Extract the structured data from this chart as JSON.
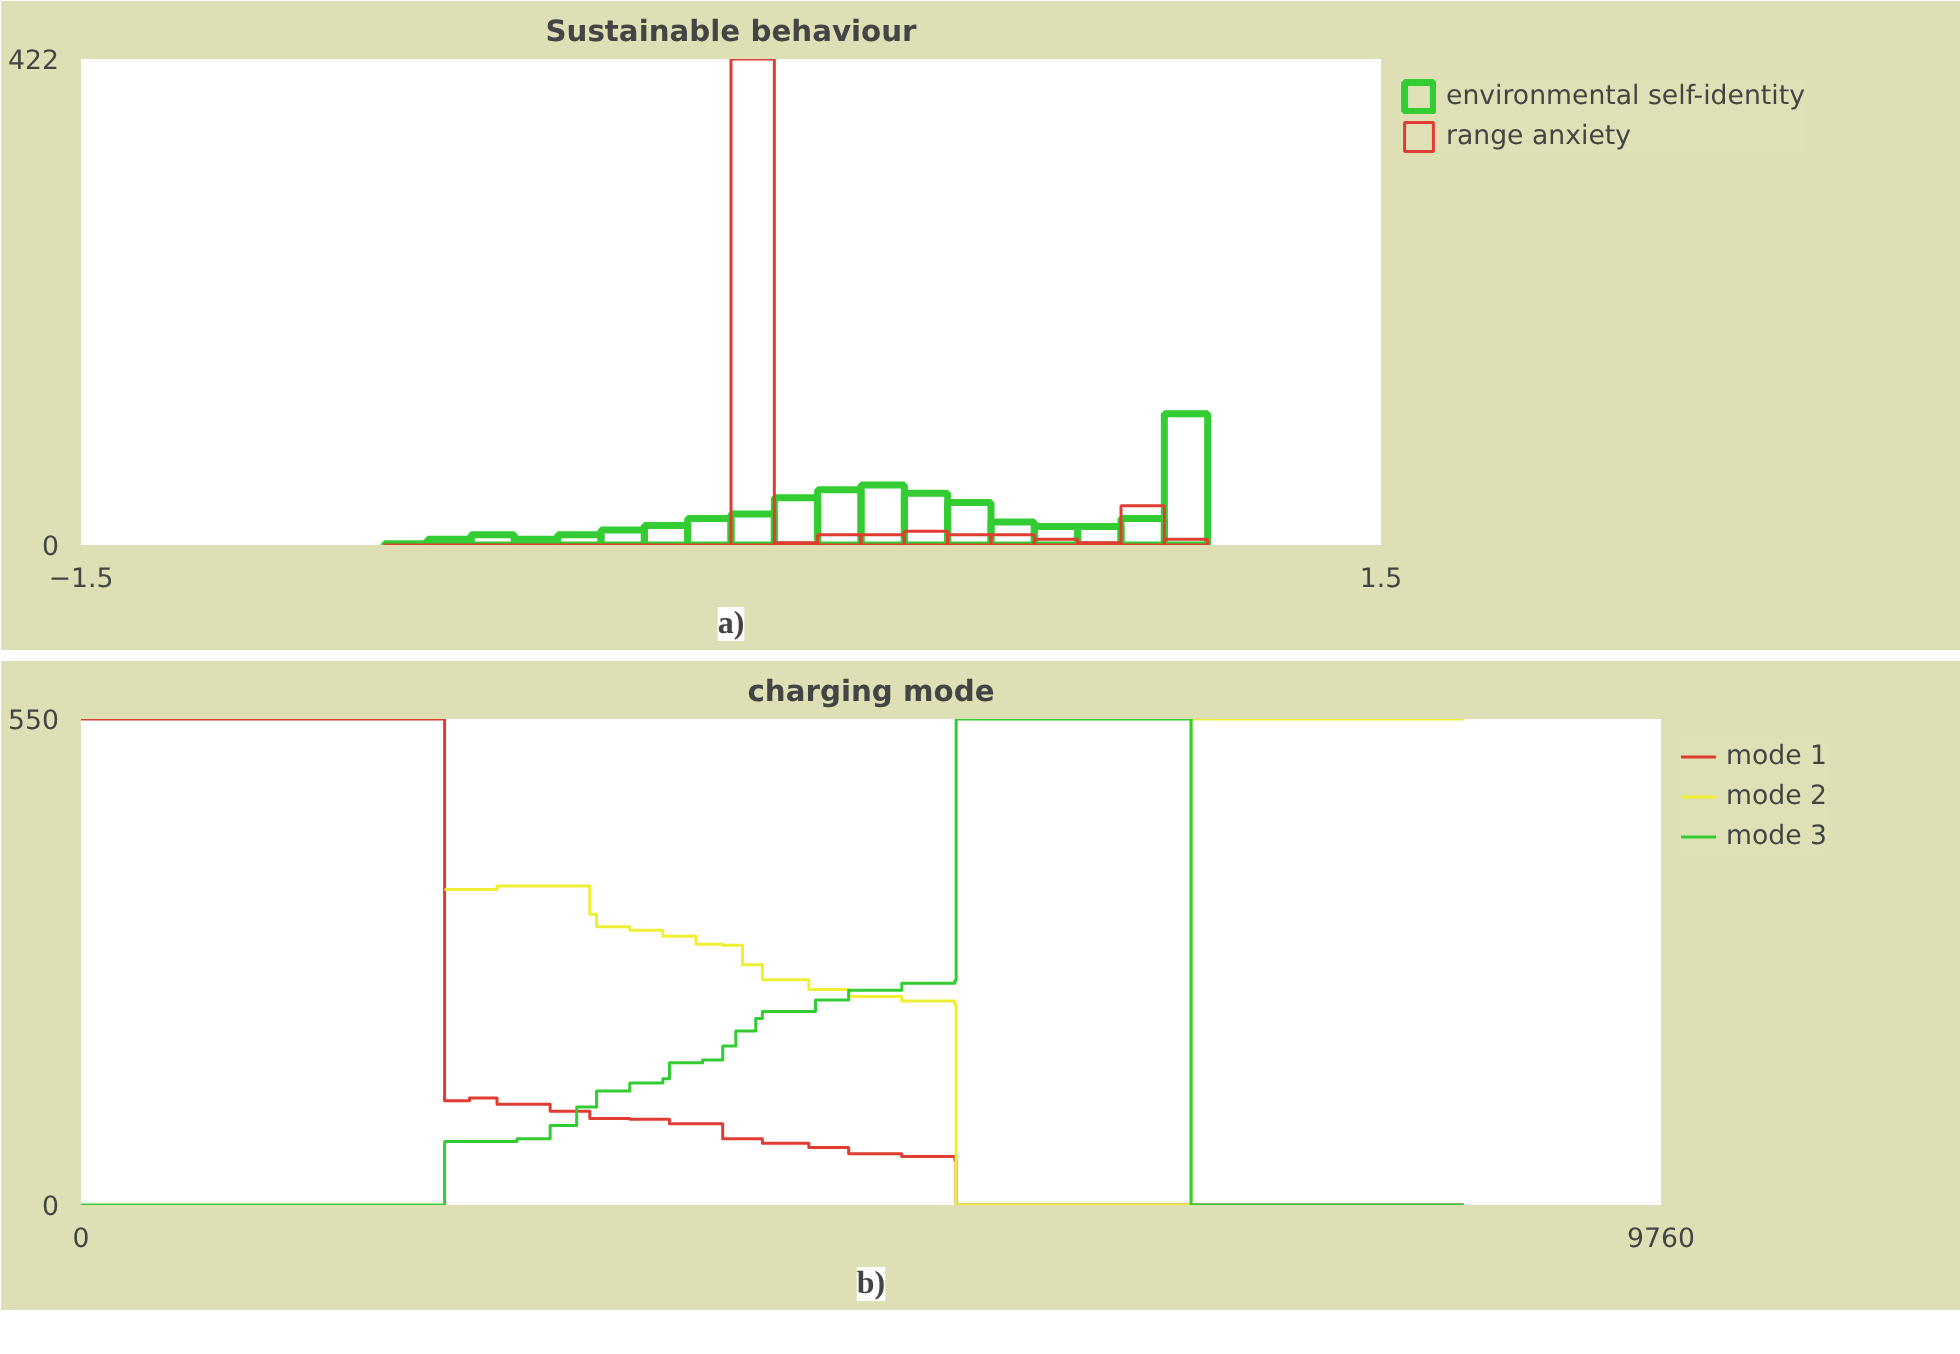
{
  "chart_data": [
    {
      "type": "histogram",
      "title": "Sustainable behaviour",
      "annotations": [
        "a)"
      ],
      "bins": [
        -0.8,
        -0.7,
        -0.6,
        -0.5,
        -0.4,
        -0.3,
        -0.2,
        -0.1,
        0.0,
        0.1,
        0.2,
        0.3,
        0.4,
        0.5,
        0.6,
        0.7,
        0.8,
        0.9,
        1.0,
        1.1
      ],
      "series": [
        {
          "name": "environmental self-identity",
          "color": "#33cc33",
          "values": [
            1,
            5,
            9,
            5,
            9,
            13,
            17,
            23,
            27,
            41,
            48,
            52,
            45,
            37,
            20,
            16,
            16,
            23,
            114
          ]
        },
        {
          "name": "range anxiety",
          "color": "#e03c31",
          "values": [
            0,
            0,
            0,
            0,
            0,
            0,
            0,
            0,
            422,
            2,
            9,
            9,
            12,
            9,
            9,
            5,
            2,
            34,
            5
          ]
        }
      ],
      "xlim": [
        -1.5,
        1.5
      ],
      "ylim": [
        0,
        422
      ],
      "xticks": [
        -1.5,
        1.5
      ],
      "yticks": [
        0,
        422
      ],
      "legend": "right"
    },
    {
      "type": "step",
      "title": "charging mode",
      "annotations": [
        "b)"
      ],
      "series": [
        {
          "name": "mode 1",
          "color": "#e03c31",
          "x": [
            0,
            2246,
            2400,
            2570,
            2898,
            3143,
            3390,
            3635,
            3964,
            4209,
            4496,
            4742,
            5070,
            5398,
            5406,
            8541
          ],
          "values": [
            550,
            118,
            121,
            114,
            106,
            98,
            97,
            92,
            75,
            70,
            65,
            58,
            55,
            51,
            0,
            0
          ]
        },
        {
          "name": "mode 2",
          "color": "#eeee33",
          "x": [
            2246,
            2570,
            2898,
            3143,
            3185,
            3390,
            3594,
            3799,
            3964,
            4086,
            4209,
            4496,
            4742,
            5070,
            5398,
            5406,
            6857,
            8541
          ],
          "values": [
            357,
            361,
            361,
            329,
            315,
            311,
            304,
            295,
            294,
            272,
            255,
            244,
            236,
            231,
            227,
            0,
            550,
            550
          ]
        },
        {
          "name": "mode 3",
          "color": "#33cc33",
          "x": [
            0,
            2246,
            2693,
            2898,
            3062,
            3185,
            3390,
            3594,
            3635,
            3840,
            3964,
            4045,
            4168,
            4209,
            4496,
            4537,
            4742,
            5070,
            5398,
            5406,
            6857,
            8541
          ],
          "values": [
            0,
            72,
            75,
            90,
            111,
            129,
            138,
            143,
            161,
            164,
            180,
            197,
            211,
            219,
            219,
            232,
            243,
            251,
            254,
            550,
            0,
            0
          ]
        }
      ],
      "xlim": [
        0,
        9760
      ],
      "ylim": [
        0,
        550
      ],
      "xticks": [
        0,
        9760
      ],
      "yticks": [
        0,
        550
      ],
      "legend": "right"
    }
  ]
}
